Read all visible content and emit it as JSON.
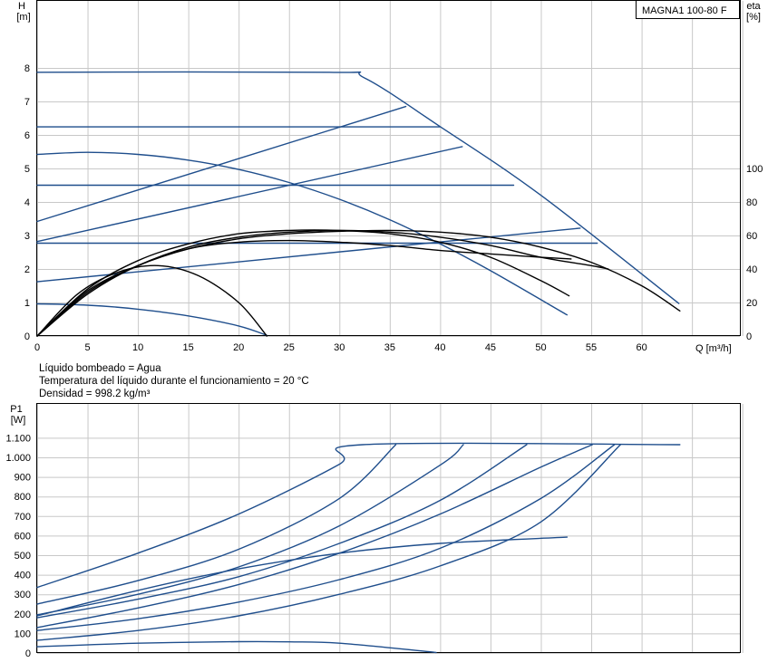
{
  "model_label": "MAGNA1 100-80 F",
  "info": {
    "line1": "Líquido bombeado = Agua",
    "line2": "Temperatura del líquido durante el funcionamiento = 20 °C",
    "line3": "Densidad = 998.2 kg/m³"
  },
  "colors": {
    "blue": "#1f4e8c",
    "black": "#000000",
    "grid": "#c8c8c8"
  },
  "chart_data": [
    {
      "type": "line",
      "title": "",
      "ylabel_name": "H",
      "ylabel_unit": "[m]",
      "y2label_name": "eta",
      "y2label_unit": "[%]",
      "xlabel": "Q [m³/h]",
      "xlim": [
        0,
        70
      ],
      "ylim": [
        0,
        9
      ],
      "y2lim": [
        0,
        180
      ],
      "xticks": [
        0,
        5,
        10,
        15,
        20,
        25,
        30,
        35,
        40,
        45,
        50,
        55,
        60
      ],
      "yticks": [
        0,
        1,
        2,
        3,
        4,
        5,
        6,
        7,
        8
      ],
      "y2ticks": [
        0,
        20,
        40,
        60,
        80,
        100
      ],
      "grid": true,
      "series": [
        {
          "kind": "head",
          "color": "#1f4e8c",
          "x": [
            0,
            29,
            32.5,
            40,
            50,
            63.7
          ],
          "y": [
            7.87,
            7.87,
            7.7,
            6.25,
            4.2,
            0.97
          ]
        },
        {
          "kind": "head",
          "color": "#1f4e8c",
          "x": [
            0,
            40
          ],
          "y": [
            6.24,
            6.24
          ]
        },
        {
          "kind": "head",
          "color": "#1f4e8c",
          "x": [
            0,
            47.3
          ],
          "y": [
            4.5,
            4.5
          ]
        },
        {
          "kind": "head",
          "color": "#1f4e8c",
          "x": [
            0,
            55.6
          ],
          "y": [
            2.77,
            2.77
          ]
        },
        {
          "kind": "head",
          "color": "#1f4e8c",
          "x": [
            0,
            36.6
          ],
          "y": [
            3.42,
            6.85
          ]
        },
        {
          "kind": "head",
          "color": "#1f4e8c",
          "x": [
            0,
            42.2
          ],
          "y": [
            2.82,
            5.65
          ]
        },
        {
          "kind": "head",
          "color": "#1f4e8c",
          "x": [
            0,
            53.9
          ],
          "y": [
            1.62,
            3.22
          ]
        },
        {
          "kind": "head",
          "color": "#1f4e8c",
          "x": [
            0,
            5,
            10,
            15,
            20,
            25,
            30,
            35,
            40,
            45,
            52.6
          ],
          "y": [
            5.42,
            5.48,
            5.42,
            5.25,
            4.97,
            4.58,
            4.08,
            3.47,
            2.75,
            1.95,
            0.63
          ]
        },
        {
          "kind": "head",
          "color": "#1f4e8c",
          "x": [
            0,
            5,
            10,
            15,
            20,
            22.8
          ],
          "y": [
            0.96,
            0.92,
            0.8,
            0.6,
            0.3,
            0.02
          ]
        },
        {
          "kind": "eta",
          "color": "#000000",
          "x": [
            0,
            5,
            10,
            15,
            20,
            25,
            30,
            35,
            40,
            45,
            50,
            55,
            60,
            63.8
          ],
          "y": [
            0,
            27,
            42,
            52,
            58,
            61,
            62.5,
            63,
            62,
            59,
            53,
            44,
            30,
            15
          ]
        },
        {
          "kind": "eta",
          "color": "#000000",
          "x": [
            0,
            5,
            10,
            15,
            20,
            25,
            30,
            35,
            40,
            45,
            50,
            55,
            56.7
          ],
          "y": [
            0,
            26,
            42,
            53,
            59,
            62,
            63,
            62,
            59,
            54,
            47,
            42,
            40
          ]
        },
        {
          "kind": "eta",
          "color": "#000000",
          "x": [
            0,
            5,
            10,
            15,
            20,
            25,
            30,
            35,
            40,
            45,
            50,
            52.8
          ],
          "y": [
            0,
            28,
            45,
            55,
            61,
            63,
            63,
            61,
            56,
            47,
            33,
            24
          ]
        },
        {
          "kind": "eta",
          "color": "#000000",
          "x": [
            0,
            5,
            10,
            15,
            20,
            25,
            30,
            35,
            40,
            45,
            50,
            53
          ],
          "y": [
            0,
            25,
            42,
            52,
            56,
            57,
            56,
            54,
            51,
            49,
            47,
            46
          ]
        },
        {
          "kind": "eta",
          "color": "#000000",
          "x": [
            0,
            4,
            8,
            12,
            16,
            20,
            22.8
          ],
          "y": [
            0,
            25,
            38,
            42,
            36,
            20,
            0
          ]
        }
      ]
    },
    {
      "type": "line",
      "title": "",
      "ylabel_name": "P1",
      "ylabel_unit": "[W]",
      "xlabel": "",
      "xlim": [
        0,
        70
      ],
      "ylim": [
        0,
        1200
      ],
      "yticks": [
        0,
        100,
        200,
        300,
        400,
        500,
        600,
        700,
        800,
        900,
        1000,
        1100
      ],
      "yticklabels": [
        "0",
        "100",
        "200",
        "300",
        "400",
        "500",
        "600",
        "700",
        "800",
        "900",
        "1.000",
        "1.100"
      ],
      "grid": true,
      "series": [
        {
          "color": "#1f4e8c",
          "x": [
            0,
            10,
            20,
            30,
            32.3,
            63.8
          ],
          "y": [
            335,
            510,
            710,
            965,
            1065,
            1065
          ]
        },
        {
          "color": "#1f4e8c",
          "x": [
            0,
            10,
            20,
            30,
            35.6
          ],
          "y": [
            250,
            370,
            530,
            790,
            1065
          ]
        },
        {
          "color": "#1f4e8c",
          "x": [
            0,
            10,
            20,
            30,
            40,
            42.3
          ],
          "y": [
            195,
            300,
            440,
            650,
            960,
            1065
          ]
        },
        {
          "color": "#1f4e8c",
          "x": [
            0,
            10,
            20,
            30,
            40,
            48.6
          ],
          "y": [
            180,
            275,
            390,
            560,
            780,
            1065
          ]
        },
        {
          "color": "#1f4e8c",
          "x": [
            0,
            10,
            20,
            30,
            40,
            50,
            55.1
          ],
          "y": [
            130,
            230,
            350,
            510,
            710,
            950,
            1065
          ]
        },
        {
          "color": "#1f4e8c",
          "x": [
            0,
            10,
            20,
            30,
            40,
            50,
            57.3
          ],
          "y": [
            115,
            175,
            260,
            375,
            535,
            790,
            1065
          ]
        },
        {
          "color": "#1f4e8c",
          "x": [
            0,
            10,
            20,
            30,
            40,
            50,
            57.9
          ],
          "y": [
            65,
            115,
            190,
            300,
            445,
            670,
            1065
          ]
        },
        {
          "color": "#1f4e8c",
          "x": [
            0,
            10,
            20,
            30,
            40,
            52.6
          ],
          "y": [
            190,
            320,
            430,
            510,
            560,
            592
          ]
        },
        {
          "color": "#1f4e8c",
          "x": [
            0,
            10,
            20,
            25,
            30,
            39.6
          ],
          "y": [
            32,
            50,
            58,
            57,
            50,
            3
          ]
        }
      ]
    }
  ]
}
